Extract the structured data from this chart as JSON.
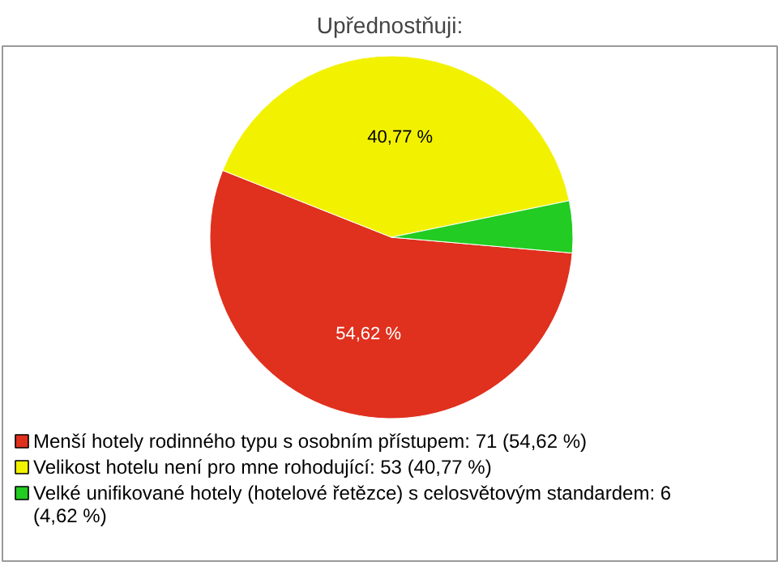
{
  "chart_data": {
    "type": "pie",
    "title": "Upřednostňuji:",
    "categories": [
      "Menší hotely rodinného typu s osobním přístupem: 71 (54,62 %)",
      "Velikost hotelu není pro mne rohodující: 53 (40,77 %)",
      "Velké unifikované hotely (hotelové řetězce) s celosvětovým standardem: 6 (4,62 %)"
    ],
    "values": [
      54.62,
      40.77,
      4.62
    ],
    "colors": [
      "#e0301e",
      "#f2f200",
      "#22cc22"
    ],
    "value_labels": [
      "54,62 %",
      "40,77 %",
      null
    ],
    "legend": "bottom"
  }
}
